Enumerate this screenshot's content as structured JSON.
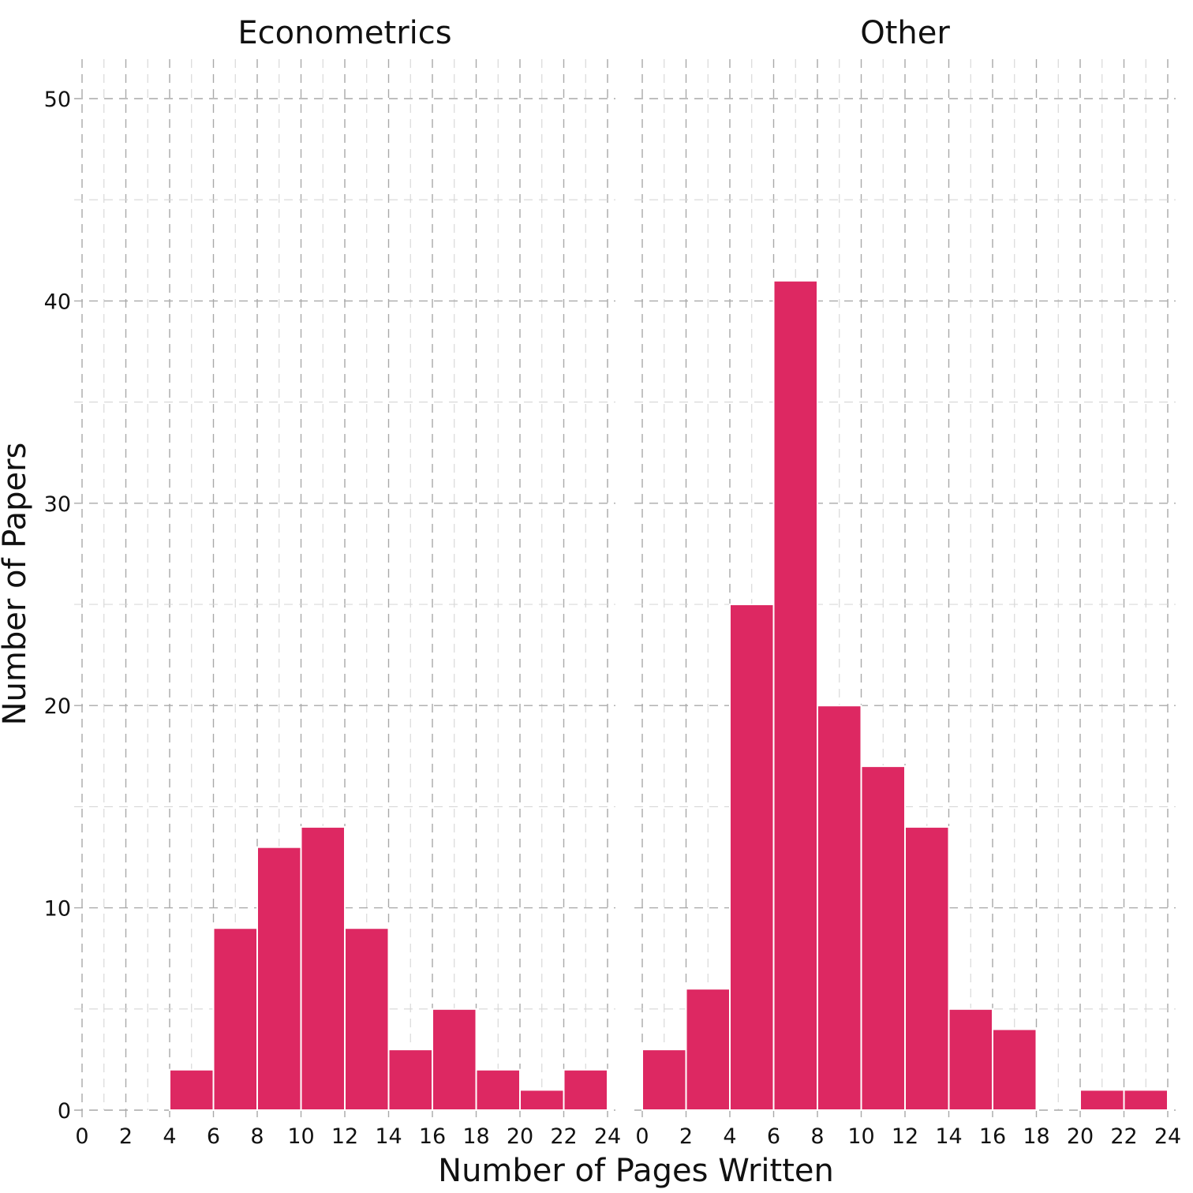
{
  "chart_data": {
    "type": "bar",
    "xlabel": "Number of Pages Written",
    "ylabel": "Number of Papers",
    "ylim": [
      0,
      52
    ],
    "y_ticks": [
      0,
      10,
      20,
      30,
      40,
      50
    ],
    "xlim": [
      0,
      24
    ],
    "x_ticks": [
      0,
      2,
      4,
      6,
      8,
      10,
      12,
      14,
      16,
      18,
      20,
      22,
      24
    ],
    "grid": true,
    "bar_color": "#dd2862",
    "bin_width": 2,
    "panels": [
      {
        "title": "Econometrics",
        "bins": [
          {
            "x0": 4,
            "x1": 6,
            "count": 2
          },
          {
            "x0": 6,
            "x1": 8,
            "count": 9
          },
          {
            "x0": 8,
            "x1": 10,
            "count": 13
          },
          {
            "x0": 10,
            "x1": 12,
            "count": 14
          },
          {
            "x0": 12,
            "x1": 14,
            "count": 9
          },
          {
            "x0": 14,
            "x1": 16,
            "count": 3
          },
          {
            "x0": 16,
            "x1": 18,
            "count": 5
          },
          {
            "x0": 18,
            "x1": 20,
            "count": 2
          },
          {
            "x0": 20,
            "x1": 22,
            "count": 1
          },
          {
            "x0": 22,
            "x1": 24,
            "count": 2
          }
        ]
      },
      {
        "title": "Other",
        "bins": [
          {
            "x0": 0,
            "x1": 2,
            "count": 3
          },
          {
            "x0": 2,
            "x1": 4,
            "count": 6
          },
          {
            "x0": 4,
            "x1": 6,
            "count": 25
          },
          {
            "x0": 6,
            "x1": 8,
            "count": 41
          },
          {
            "x0": 8,
            "x1": 10,
            "count": 20
          },
          {
            "x0": 10,
            "x1": 12,
            "count": 17
          },
          {
            "x0": 12,
            "x1": 14,
            "count": 14
          },
          {
            "x0": 14,
            "x1": 16,
            "count": 5
          },
          {
            "x0": 16,
            "x1": 18,
            "count": 4
          },
          {
            "x0": 20,
            "x1": 22,
            "count": 1
          },
          {
            "x0": 22,
            "x1": 24,
            "count": 1
          }
        ]
      }
    ]
  }
}
